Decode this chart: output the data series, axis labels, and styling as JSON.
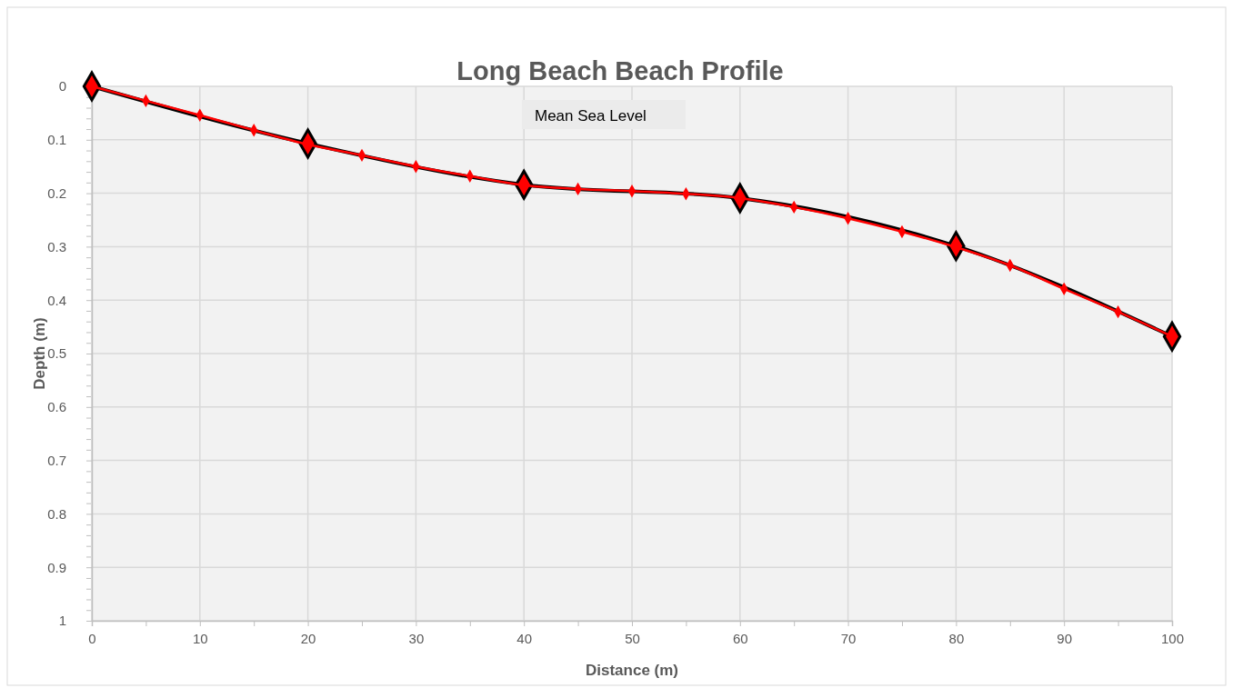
{
  "chart_data": {
    "type": "line",
    "title": "Long Beach Beach Profile",
    "xlabel": "Distance (m)",
    "ylabel": "Depth (m)",
    "annotations": [
      "Mean Sea Level"
    ],
    "series": [
      {
        "color": "#000000",
        "marker": "diamond",
        "x": [
          0,
          20,
          40,
          60,
          80,
          100
        ],
        "values": [
          0,
          0.107,
          0.184,
          0.209,
          0.299,
          0.468
        ]
      },
      {
        "color": "#ff0000",
        "marker": "diamond",
        "x": [
          0,
          5,
          10,
          15,
          20,
          25,
          30,
          35,
          40,
          45,
          50,
          55,
          60,
          65,
          70,
          75,
          80,
          85,
          90,
          95,
          100
        ],
        "values": [
          0,
          0.027,
          0.054,
          0.082,
          0.109,
          0.129,
          0.15,
          0.168,
          0.185,
          0.192,
          0.196,
          0.201,
          0.209,
          0.226,
          0.247,
          0.272,
          0.301,
          0.335,
          0.379,
          0.422,
          0.468
        ]
      }
    ],
    "xlim": [
      0,
      100
    ],
    "xticks": [
      0,
      {
        "value": 5,
        "label": null
      },
      10,
      {
        "value": 15,
        "label": null
      },
      20,
      {
        "value": 25,
        "label": null
      },
      30,
      {
        "value": 35,
        "label": null
      },
      40,
      {
        "value": 45,
        "label": null
      },
      50,
      {
        "value": 55,
        "label": null
      },
      60,
      {
        "value": 65,
        "label": null
      },
      70,
      {
        "value": 75,
        "label": null
      },
      80,
      {
        "value": 85,
        "label": null
      },
      90,
      {
        "value": 95,
        "label": null
      },
      100
    ],
    "ylim": [
      1,
      0
    ],
    "yticks": [
      0,
      {
        "value": 0.02,
        "label": null
      },
      {
        "value": 0.04,
        "label": null
      },
      {
        "value": 0.06,
        "label": null
      },
      {
        "value": 0.08,
        "label": null
      },
      0.1,
      {
        "value": 0.12,
        "label": null
      },
      {
        "value": 0.14,
        "label": null
      },
      {
        "value": 0.16,
        "label": null
      },
      {
        "value": 0.18,
        "label": null
      },
      0.2,
      {
        "value": 0.22,
        "label": null
      },
      {
        "value": 0.24,
        "label": null
      },
      {
        "value": 0.26,
        "label": null
      },
      {
        "value": 0.28,
        "label": null
      },
      0.3,
      {
        "value": 0.32,
        "label": null
      },
      {
        "value": 0.34,
        "label": null
      },
      {
        "value": 0.36,
        "label": null
      },
      {
        "value": 0.38,
        "label": null
      },
      0.4,
      {
        "value": 0.42,
        "label": null
      },
      {
        "value": 0.44,
        "label": null
      },
      {
        "value": 0.46,
        "label": null
      },
      {
        "value": 0.48,
        "label": null
      },
      0.5,
      {
        "value": 0.52,
        "label": null
      },
      {
        "value": 0.54,
        "label": null
      },
      {
        "value": 0.56,
        "label": null
      },
      {
        "value": 0.58,
        "label": null
      },
      0.6,
      {
        "value": 0.62,
        "label": null
      },
      {
        "value": 0.64,
        "label": null
      },
      {
        "value": 0.66,
        "label": null
      },
      {
        "value": 0.68,
        "label": null
      },
      0.7,
      {
        "value": 0.72,
        "label": null
      },
      {
        "value": 0.74,
        "label": null
      },
      {
        "value": 0.76,
        "label": null
      },
      {
        "value": 0.78,
        "label": null
      },
      0.8,
      {
        "value": 0.82,
        "label": null
      },
      {
        "value": 0.84,
        "label": null
      },
      {
        "value": 0.86,
        "label": null
      },
      {
        "value": 0.88,
        "label": null
      },
      0.9,
      {
        "value": 0.92,
        "label": null
      },
      {
        "value": 0.94,
        "label": null
      },
      {
        "value": 0.96,
        "label": null
      },
      {
        "value": 0.98,
        "label": null
      },
      1
    ],
    "grid": true,
    "line_style": "solid"
  }
}
